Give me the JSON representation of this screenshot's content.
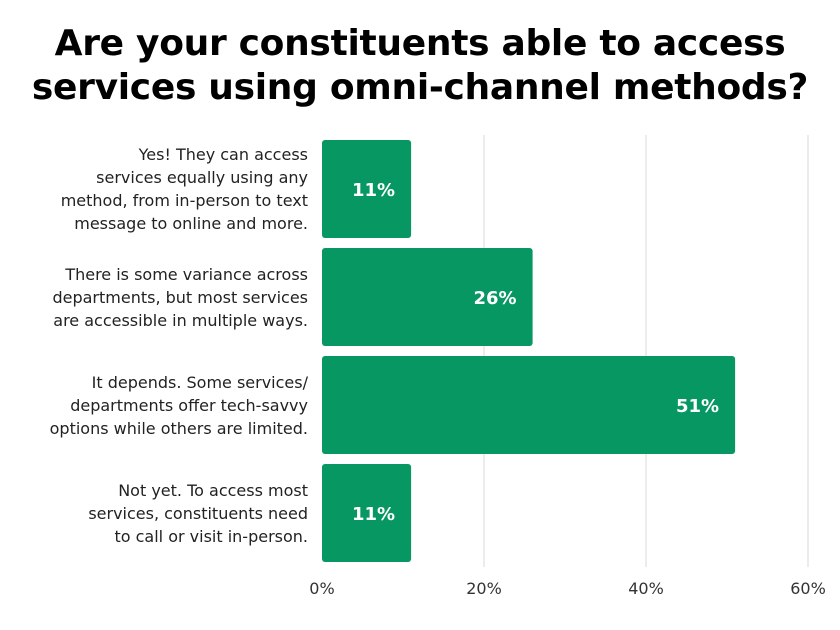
{
  "title_lines": [
    "Are your constituents able to access",
    "services using omni-channel methods?"
  ],
  "chart_data": {
    "type": "bar",
    "orientation": "horizontal",
    "title": "Are your constituents able to access services using omni-channel methods?",
    "categories": [
      [
        "Yes! They can access",
        "services equally using any",
        "method, from in-person to text",
        "message to online and more."
      ],
      [
        "There is some variance across",
        "departments, but most services",
        "are accessible in multiple ways."
      ],
      [
        "It depends. Some services/",
        "departments offer tech-savvy",
        "options while others are limited."
      ],
      [
        "Not yet. To access most",
        "services, constituents need",
        "to call or visit in-person."
      ]
    ],
    "values": [
      11,
      26,
      51,
      11
    ],
    "data_labels": [
      "11%",
      "26%",
      "51%",
      "11%"
    ],
    "xlim": [
      0,
      60
    ],
    "x_ticks": [
      "0%",
      "20%",
      "40%",
      "60%"
    ],
    "grid": true,
    "bar_color": "#079763",
    "grid_color": "#d9d9d9",
    "label_color": "#ffffff"
  }
}
